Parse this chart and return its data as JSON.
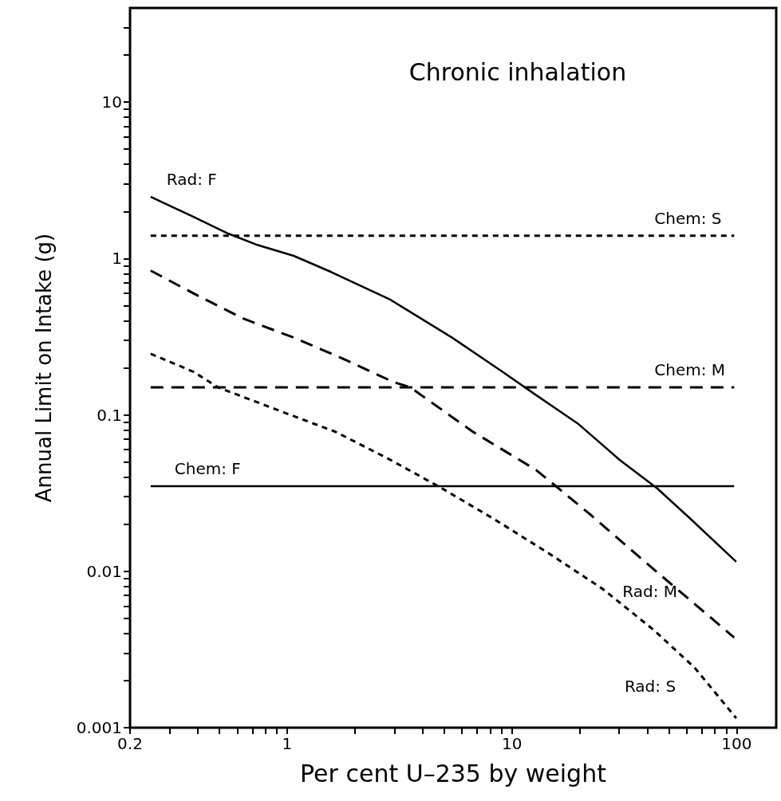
{
  "chart_data": {
    "type": "line",
    "title": "Chronic inhalation",
    "xlabel": "Per cent U–235 by weight",
    "ylabel": "Annual Limit on Intake (g)",
    "log": "xy",
    "grid": false,
    "marker": "none",
    "xlim": [
      0.2,
      150
    ],
    "ylim": [
      0.001,
      40
    ],
    "xticks": [
      0.2,
      {
        "value": 0.3,
        "label": null
      },
      {
        "value": 0.4,
        "label": null
      },
      {
        "value": 0.5,
        "label": null
      },
      {
        "value": 0.6,
        "label": null
      },
      {
        "value": 0.7,
        "label": null
      },
      {
        "value": 0.8,
        "label": null
      },
      {
        "value": 0.9,
        "label": null
      },
      1,
      {
        "value": 2,
        "label": null
      },
      {
        "value": 3,
        "label": null
      },
      {
        "value": 4,
        "label": null
      },
      {
        "value": 5,
        "label": null
      },
      {
        "value": 6,
        "label": null
      },
      {
        "value": 7,
        "label": null
      },
      {
        "value": 8,
        "label": null
      },
      {
        "value": 9,
        "label": null
      },
      10,
      {
        "value": 20,
        "label": null
      },
      {
        "value": 30,
        "label": null
      },
      {
        "value": 40,
        "label": null
      },
      {
        "value": 50,
        "label": null
      },
      {
        "value": 60,
        "label": null
      },
      {
        "value": 70,
        "label": null
      },
      {
        "value": 80,
        "label": null
      },
      {
        "value": 90,
        "label": null
      },
      100
    ],
    "yticks": [
      0.001,
      {
        "value": 0.002,
        "label": null
      },
      {
        "value": 0.003,
        "label": null
      },
      {
        "value": 0.004,
        "label": null
      },
      {
        "value": 0.005,
        "label": null
      },
      {
        "value": 0.006,
        "label": null
      },
      {
        "value": 0.007,
        "label": null
      },
      {
        "value": 0.008,
        "label": null
      },
      {
        "value": 0.009,
        "label": null
      },
      0.01,
      {
        "value": 0.02,
        "label": null
      },
      {
        "value": 0.03,
        "label": null
      },
      {
        "value": 0.04,
        "label": null
      },
      {
        "value": 0.05,
        "label": null
      },
      {
        "value": 0.06,
        "label": null
      },
      {
        "value": 0.07,
        "label": null
      },
      {
        "value": 0.08,
        "label": null
      },
      {
        "value": 0.09,
        "label": null
      },
      0.1,
      {
        "value": 0.2,
        "label": null
      },
      {
        "value": 0.3,
        "label": null
      },
      {
        "value": 0.4,
        "label": null
      },
      {
        "value": 0.5,
        "label": null
      },
      {
        "value": 0.6,
        "label": null
      },
      {
        "value": 0.7,
        "label": null
      },
      {
        "value": 0.8,
        "label": null
      },
      {
        "value": 0.9,
        "label": null
      },
      1,
      {
        "value": 2,
        "label": null
      },
      {
        "value": 3,
        "label": null
      },
      {
        "value": 4,
        "label": null
      },
      {
        "value": 5,
        "label": null
      },
      {
        "value": 6,
        "label": null
      },
      {
        "value": 7,
        "label": null
      },
      {
        "value": 8,
        "label": null
      },
      {
        "value": 9,
        "label": null
      },
      10,
      {
        "value": 20,
        "label": null
      },
      {
        "value": 30,
        "label": null
      }
    ],
    "series": [
      {
        "name": "Rad: F",
        "color": "#000000",
        "line_style": "solid",
        "x": [
          0.247,
          0.382,
          0.549,
          0.726,
          1.07,
          1.57,
          2.85,
          5.42,
          9.06,
          12.8,
          19.6,
          30.0,
          44.2,
          62.2,
          99.6
        ],
        "values": [
          2.48,
          1.85,
          1.44,
          1.23,
          1.04,
          0.82,
          0.55,
          0.312,
          0.189,
          0.134,
          0.0883,
          0.0519,
          0.034,
          0.0217,
          0.0115
        ]
      },
      {
        "name": "Rad: M",
        "color": "#000000",
        "line_style": "dashed",
        "x": [
          0.247,
          0.382,
          0.638,
          1.07,
          1.78,
          2.98,
          3.53,
          6.71,
          12.8,
          22.3,
          38.8,
          64.9,
          97.5
        ],
        "values": [
          0.837,
          0.6,
          0.413,
          0.312,
          0.228,
          0.162,
          0.15,
          0.078,
          0.0445,
          0.0231,
          0.0116,
          0.0062,
          0.00377
        ]
      },
      {
        "name": "Rad: S",
        "color": "#000000",
        "line_style": "dotted",
        "x": [
          0.247,
          0.382,
          0.493,
          0.98,
          1.64,
          2.85,
          4.77,
          8.32,
          14.5,
          25.3,
          42.3,
          64.9,
          99.6
        ],
        "values": [
          0.246,
          0.189,
          0.15,
          0.103,
          0.078,
          0.052,
          0.0346,
          0.0216,
          0.0131,
          0.00773,
          0.00427,
          0.00243,
          0.00115
        ]
      },
      {
        "name": "Chem: S",
        "color": "#000000",
        "line_style": "dotted",
        "x": [
          0.247,
          97.5
        ],
        "values": [
          1.4,
          1.4
        ]
      },
      {
        "name": "Chem: M",
        "color": "#000000",
        "line_style": "dashed",
        "x": [
          0.247,
          97.5
        ],
        "values": [
          0.15,
          0.15
        ]
      },
      {
        "name": "Chem: F",
        "color": "#000000",
        "line_style": "solid",
        "x": [
          0.247,
          97.5
        ],
        "values": [
          0.035,
          0.035
        ]
      }
    ]
  }
}
